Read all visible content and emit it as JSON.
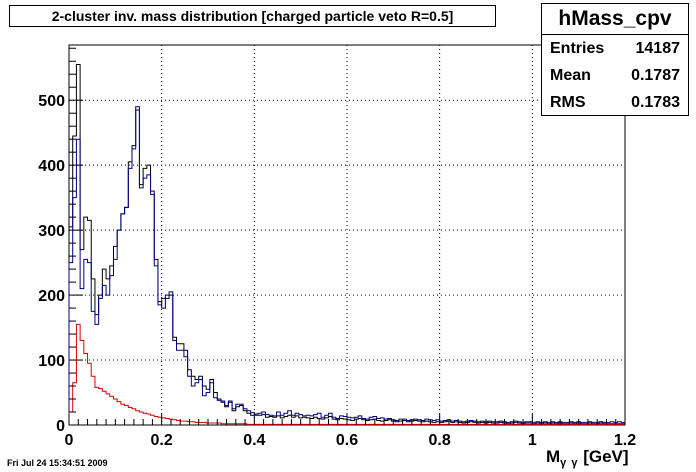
{
  "title": "2-cluster inv. mass distribution [charged particle veto R=0.5]",
  "stats": {
    "name": "hMass_cpv",
    "rows": [
      {
        "label": "Entries",
        "value": "14187"
      },
      {
        "label": "Mean",
        "value": "0.1787"
      },
      {
        "label": "RMS",
        "value": "0.1783"
      }
    ]
  },
  "datestamp": "Fri Jul 24 15:34:51 2009",
  "xaxis": {
    "main": "M",
    "sub": "γ γ",
    "unit": " [GeV]"
  },
  "chart_data": {
    "type": "histogram",
    "bin_width": 0.008,
    "xlim": [
      0,
      1.2
    ],
    "ylim": [
      0,
      585
    ],
    "xticks": [
      0,
      0.2,
      0.4,
      0.6,
      0.8,
      1,
      1.2
    ],
    "xtick_labels": [
      "0",
      "0.2",
      "0.4",
      "0.6",
      "0.8",
      "1",
      "1.2"
    ],
    "yticks": [
      0,
      100,
      200,
      300,
      400,
      500
    ],
    "ytick_labels": [
      "0",
      "100",
      "200",
      "300",
      "400",
      "500"
    ],
    "grid": true,
    "colors": {
      "black": "#000000",
      "blue": "#00007f",
      "red": "#dd0000"
    },
    "series": [
      {
        "color": "black",
        "values": [
          305,
          445,
          555,
          270,
          320,
          315,
          225,
          170,
          200,
          240,
          225,
          245,
          275,
          300,
          325,
          335,
          405,
          430,
          485,
          370,
          395,
          400,
          360,
          255,
          190,
          180,
          195,
          200,
          135,
          125,
          125,
          115,
          85,
          75,
          70,
          75,
          60,
          55,
          70,
          50,
          40,
          35,
          28,
          35,
          22,
          28,
          30,
          22,
          18,
          15,
          15,
          15,
          16,
          12,
          13,
          12,
          14,
          11,
          13,
          15,
          12,
          14,
          11,
          12,
          11,
          10,
          12,
          10,
          9,
          11,
          13,
          9,
          8,
          10,
          9,
          8,
          7,
          9,
          10,
          8,
          7,
          8,
          9,
          7,
          6,
          7,
          8,
          6,
          5,
          6,
          7,
          5,
          6,
          7,
          6,
          5,
          6,
          5,
          4,
          5,
          4,
          5,
          6,
          4,
          5,
          4,
          3,
          4,
          5,
          4,
          3,
          4,
          3,
          4,
          3,
          3,
          4,
          3,
          2,
          3,
          4,
          3,
          2,
          3,
          3,
          2,
          3,
          2,
          3,
          2,
          3,
          2,
          3,
          2,
          2,
          3,
          2,
          3,
          2,
          2,
          3,
          2,
          2,
          3,
          2,
          2,
          2,
          2,
          2,
          2
        ]
      },
      {
        "color": "blue",
        "values": [
          250,
          350,
          440,
          210,
          255,
          250,
          175,
          155,
          195,
          215,
          200,
          230,
          255,
          300,
          325,
          335,
          395,
          425,
          490,
          365,
          380,
          385,
          355,
          245,
          185,
          195,
          200,
          205,
          130,
          115,
          115,
          105,
          75,
          60,
          65,
          70,
          45,
          50,
          65,
          42,
          38,
          37,
          30,
          37,
          25,
          32,
          32,
          25,
          22,
          19,
          17,
          18,
          20,
          16,
          15,
          14,
          20,
          15,
          18,
          22,
          15,
          18,
          16,
          14,
          15,
          14,
          16,
          18,
          12,
          15,
          18,
          12,
          10,
          14,
          13,
          12,
          11,
          12,
          14,
          10,
          9,
          12,
          13,
          10,
          11,
          9,
          10,
          8,
          7,
          9,
          9,
          7,
          8,
          9,
          8,
          7,
          9,
          8,
          7,
          8,
          6,
          7,
          8,
          6,
          7,
          6,
          5,
          6,
          7,
          6,
          5,
          6,
          5,
          6,
          5,
          5,
          6,
          5,
          4,
          5,
          6,
          5,
          4,
          5,
          5,
          4,
          5,
          4,
          5,
          4,
          5,
          4,
          5,
          4,
          4,
          5,
          4,
          5,
          4,
          4,
          5,
          4,
          4,
          5,
          4,
          4,
          5,
          4,
          5,
          4
        ]
      },
      {
        "color": "red",
        "values": [
          20,
          65,
          155,
          130,
          110,
          95,
          75,
          58,
          56,
          52,
          48,
          44,
          40,
          36,
          32,
          30,
          27,
          25,
          22,
          20,
          18,
          17,
          15,
          13,
          12,
          11,
          10,
          9,
          8,
          7,
          6,
          6,
          5,
          5,
          4,
          4,
          4,
          3,
          3,
          3,
          3,
          2,
          2,
          2,
          2,
          2,
          2,
          2,
          1,
          1,
          1,
          1,
          1,
          1,
          1,
          1,
          1,
          1,
          1,
          1,
          1,
          1,
          1,
          1,
          1,
          1,
          1,
          1,
          1,
          1,
          1,
          1,
          1,
          1,
          1,
          1,
          1,
          1,
          1,
          1,
          1,
          1,
          1,
          1,
          1,
          1,
          1,
          1,
          1,
          1,
          1,
          1,
          1,
          1,
          1,
          1,
          1,
          1,
          1,
          1,
          1,
          1,
          1,
          1,
          1,
          1,
          1,
          1,
          1,
          1,
          1,
          1,
          1,
          1,
          1,
          1,
          1,
          1,
          1,
          1,
          1,
          1,
          1,
          1,
          1,
          1,
          1,
          1,
          1,
          1,
          1,
          1,
          1,
          1,
          1,
          1,
          1,
          1,
          1,
          1,
          1,
          1,
          1,
          1,
          1,
          1,
          1,
          1,
          1,
          1
        ]
      }
    ]
  }
}
